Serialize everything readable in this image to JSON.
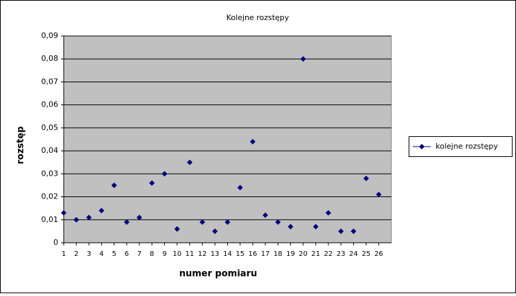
{
  "chart_data": {
    "type": "line",
    "title": "Kolejne rozstępy",
    "x_label": "numer pomiaru",
    "y_label": "rozstęp",
    "categories": [
      "1",
      "2",
      "3",
      "4",
      "5",
      "6",
      "7",
      "8",
      "9",
      "10",
      "11",
      "12",
      "13",
      "14",
      "15",
      "16",
      "17",
      "18",
      "19",
      "20",
      "21",
      "22",
      "23",
      "24",
      "25",
      "26"
    ],
    "series": [
      {
        "name": "kolejne rozstępy",
        "color": "#000080",
        "values": [
          0.013,
          0.01,
          0.011,
          0.014,
          0.025,
          0.009,
          0.011,
          0.026,
          0.03,
          0.006,
          0.035,
          0.009,
          0.005,
          0.009,
          0.024,
          0.044,
          0.012,
          0.009,
          0.007,
          0.08,
          0.007,
          0.013,
          0.005,
          0.005,
          0.028,
          0.021
        ]
      }
    ],
    "ylim": [
      0,
      0.09
    ],
    "yticks": [
      0,
      {
        "value": 0.01,
        "label": "0,01"
      },
      {
        "value": 0.02,
        "label": "0,02"
      },
      {
        "value": 0.03,
        "label": "0,03"
      },
      {
        "value": 0.04,
        "label": "0,04"
      },
      {
        "value": 0.05,
        "label": "0,05"
      },
      {
        "value": 0.06,
        "label": "0,06"
      },
      {
        "value": 0.07,
        "label": "0,07"
      },
      {
        "value": 0.08,
        "label": "0,08"
      },
      {
        "value": 0.09,
        "label": "0,09"
      }
    ],
    "grid": true,
    "plot_background": "#c0c0c0",
    "legend": "right"
  }
}
